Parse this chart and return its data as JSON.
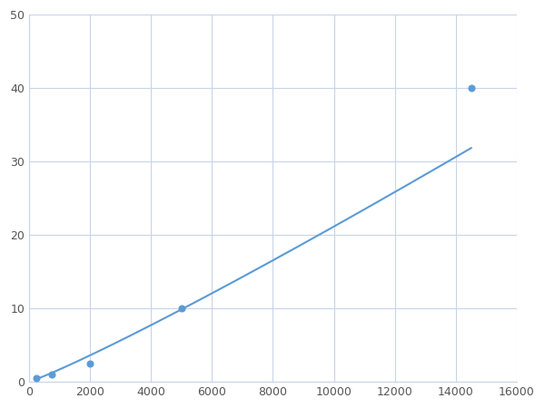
{
  "x_data": [
    250,
    750,
    2000,
    5000,
    14500
  ],
  "y_data": [
    0.5,
    1.0,
    2.5,
    10.0,
    40.0
  ],
  "line_color": "#5b9bd5",
  "marker_color": "#5b9bd5",
  "marker_size": 5,
  "marker_style": "o",
  "line_width": 1.5,
  "xlim": [
    0,
    16000
  ],
  "ylim": [
    0,
    50
  ],
  "xticks": [
    0,
    2000,
    4000,
    6000,
    8000,
    10000,
    12000,
    14000,
    16000
  ],
  "yticks": [
    0,
    10,
    20,
    30,
    40,
    50
  ],
  "grid_color": "#c8d4e8",
  "background_color": "#ffffff",
  "fig_width": 6.0,
  "fig_height": 4.5,
  "dpi": 100
}
